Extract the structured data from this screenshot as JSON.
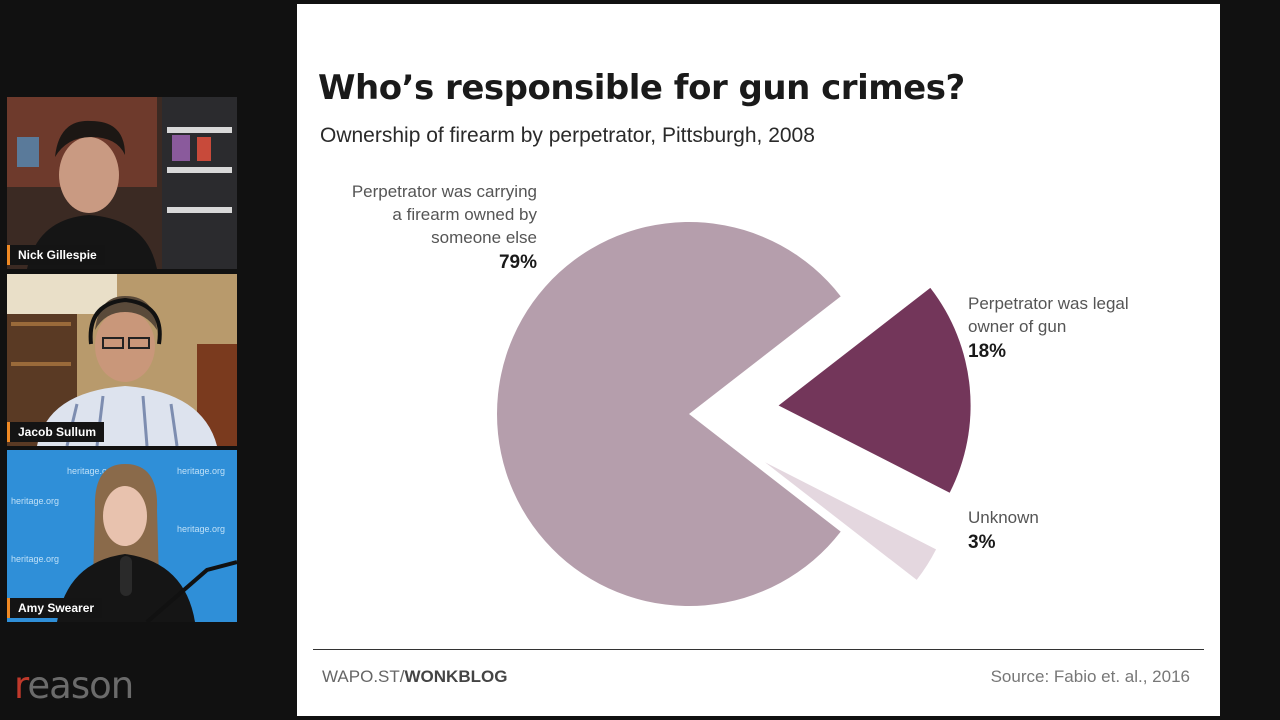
{
  "participants": [
    {
      "name": "Nick Gillespie"
    },
    {
      "name": "Jacob Sullum"
    },
    {
      "name": "Amy Swearer",
      "backdrop_text": "heritage.org"
    }
  ],
  "logo": {
    "text": "reason",
    "color": "#c0392b"
  },
  "slide": {
    "title": "Who’s responsible for gun crimes?",
    "subtitle": "Ownership of firearm by perpetrator, Pittsburgh, 2008",
    "footer_left_prefix": "WAPO.ST/",
    "footer_left_bold": "WONKBLOG",
    "source": "Source: Fabio et. al., 2016"
  },
  "chart_data": {
    "type": "pie",
    "slices": [
      {
        "label": "Perpetrator was carrying a firearm owned by someone else",
        "label_lines": [
          "Perpetrator was carrying",
          "a firearm owned by",
          "someone else"
        ],
        "value": 79,
        "display": "79%",
        "color": "#b59eac"
      },
      {
        "label": "Perpetrator was legal owner of gun",
        "label_lines": [
          "Perpetrator was legal",
          "owner of gun"
        ],
        "value": 18,
        "display": "18%",
        "color": "#73365a"
      },
      {
        "label": "Unknown",
        "label_lines": [
          "Unknown"
        ],
        "value": 3,
        "display": "3%",
        "color": "#e4d7df"
      }
    ]
  }
}
